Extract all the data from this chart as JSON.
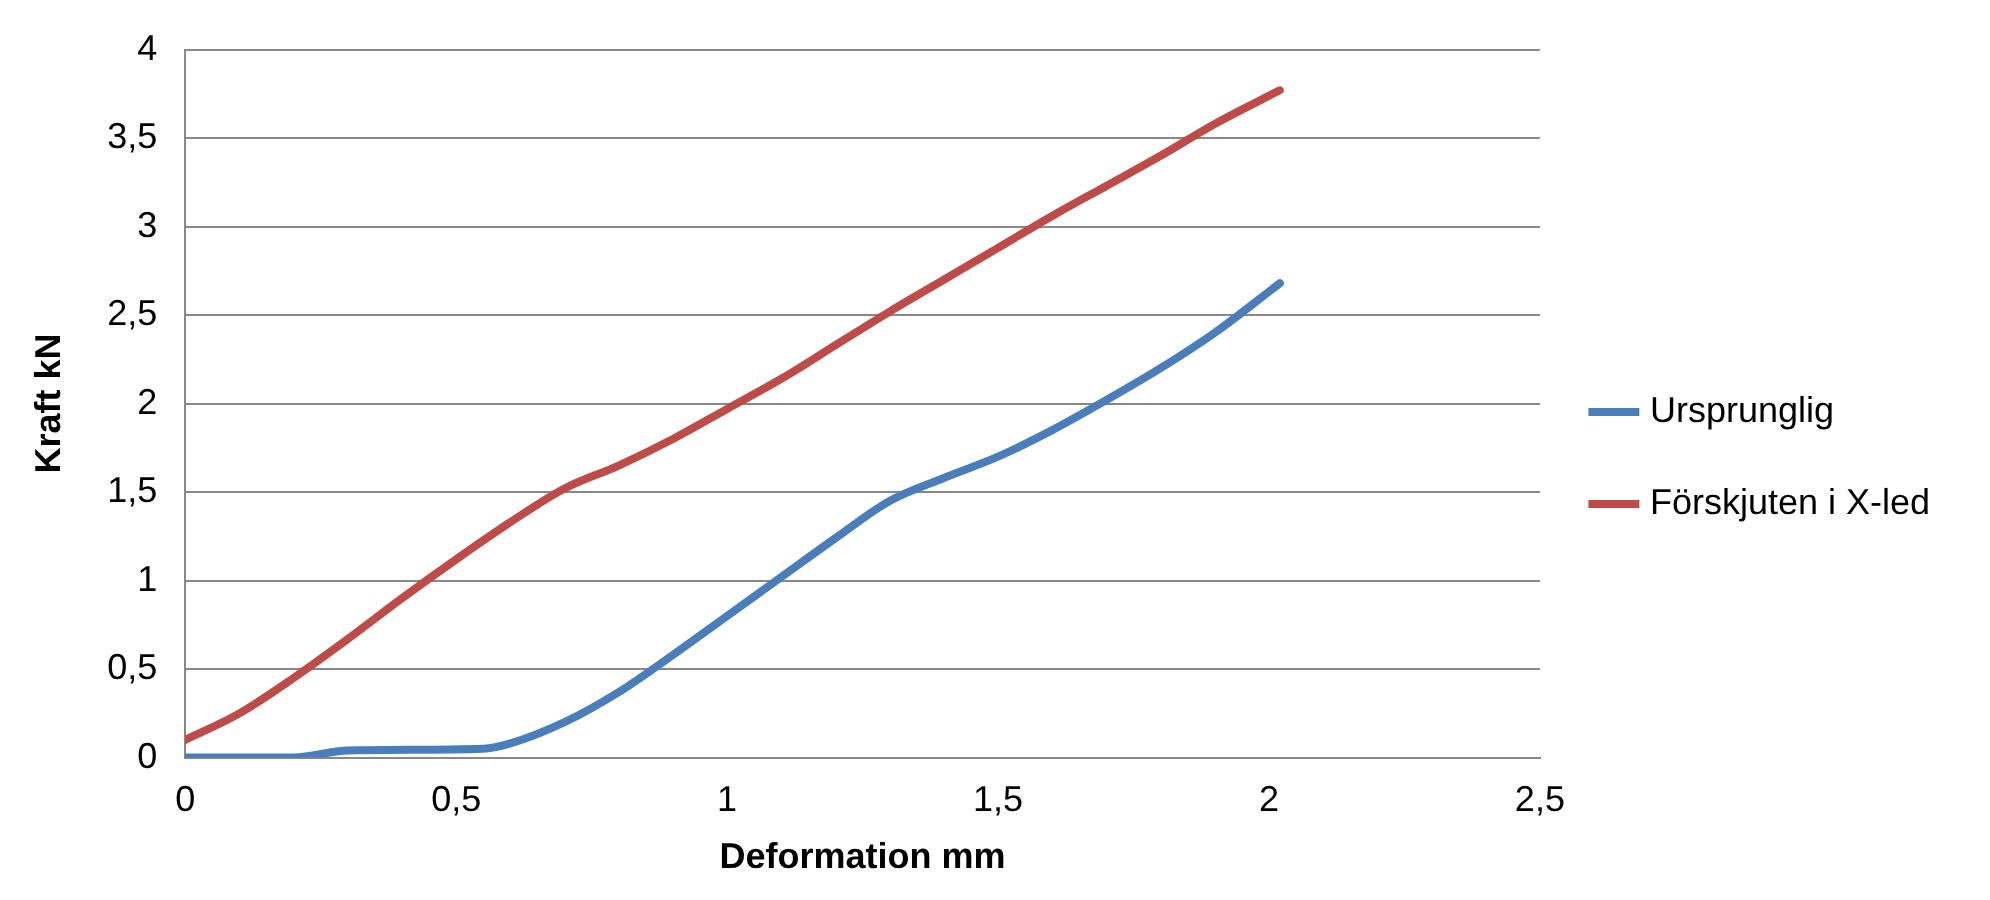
{
  "chart_data": {
    "type": "line",
    "xlabel": "Deformation mm",
    "ylabel": "Kraft kN",
    "xlim": [
      0,
      2.5
    ],
    "xticks": [
      0,
      {
        "value": 0.5,
        "label": "0,5"
      },
      1,
      {
        "value": 1.5,
        "label": "1,5"
      },
      2,
      {
        "value": 2.5,
        "label": "2,5"
      }
    ],
    "ylim": [
      0,
      4
    ],
    "yticks": [
      0,
      {
        "value": 0.5,
        "label": "0,5"
      },
      1,
      {
        "value": 1.5,
        "label": "1,5"
      },
      2,
      {
        "value": 2.5,
        "label": "2,5"
      },
      3,
      {
        "value": 3.5,
        "label": "3,5"
      },
      4
    ],
    "grid": "y",
    "legend": "right",
    "marker": "none",
    "line_style": "solid",
    "series": [
      {
        "name": "Ursprunglig",
        "color": "#4a7ebb",
        "x": [
          0,
          0.2,
          0.3,
          0.55,
          0.6,
          0.7,
          0.8,
          0.9,
          1,
          1.1,
          1.2,
          1.3,
          1.4,
          1.5,
          1.6,
          1.7,
          1.8,
          1.9,
          2.02
        ],
        "values": [
          0,
          0,
          0.04,
          0.05,
          0.08,
          0.2,
          0.37,
          0.58,
          0.8,
          1.02,
          1.24,
          1.45,
          1.58,
          1.7,
          1.85,
          2.02,
          2.2,
          2.4,
          2.68
        ]
      },
      {
        "name": "Förskjuten i X-led",
        "color": "#be4b48",
        "x": [
          0,
          0.1,
          0.2,
          0.3,
          0.4,
          0.5,
          0.6,
          0.7,
          0.8,
          0.9,
          1,
          1.1,
          1.2,
          1.3,
          1.4,
          1.5,
          1.6,
          1.7,
          1.8,
          1.9,
          2.02
        ],
        "values": [
          0.1,
          0.25,
          0.45,
          0.67,
          0.9,
          1.12,
          1.33,
          1.52,
          1.65,
          1.8,
          1.97,
          2.14,
          2.33,
          2.52,
          2.7,
          2.88,
          3.06,
          3.23,
          3.4,
          3.58,
          3.77
        ]
      }
    ]
  }
}
